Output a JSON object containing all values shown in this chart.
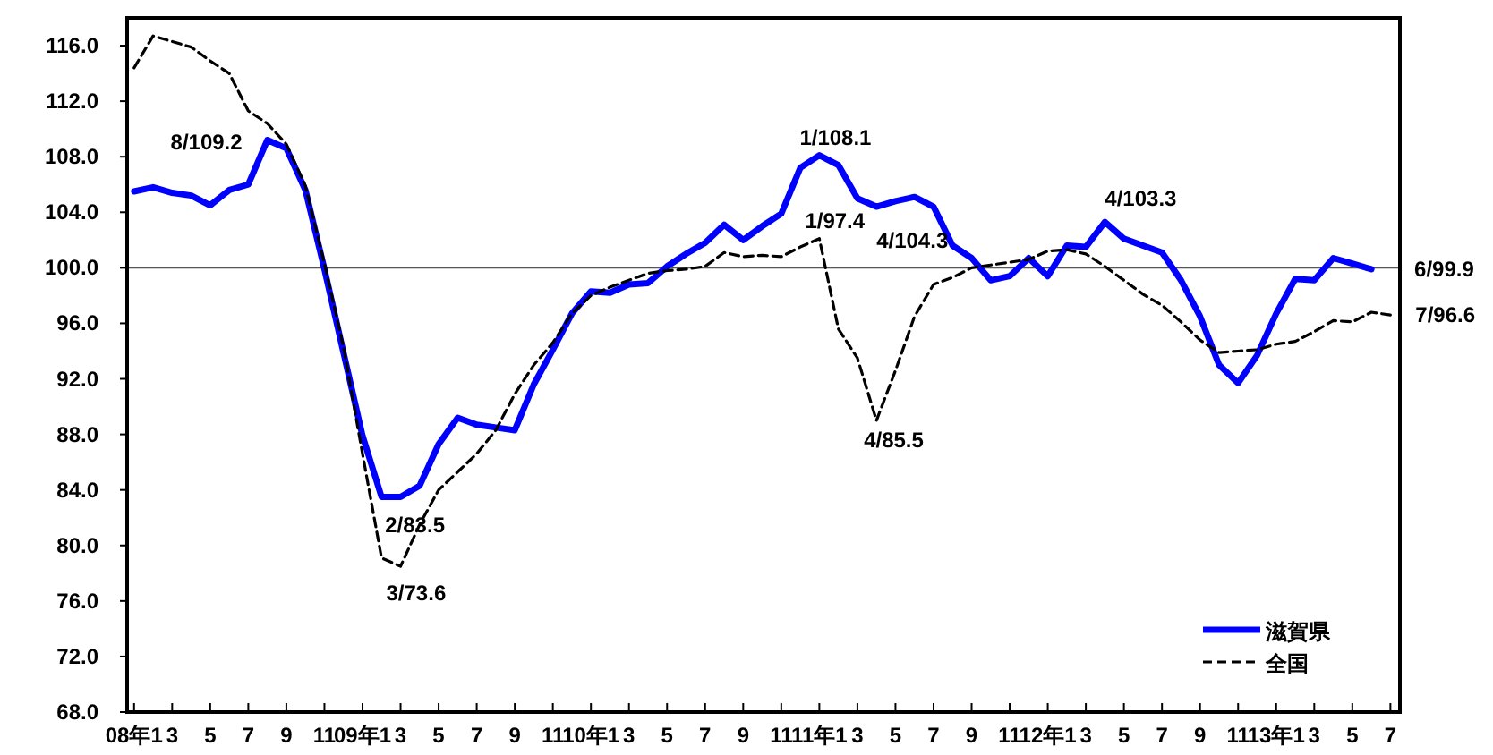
{
  "chart_data": {
    "type": "line",
    "x": [
      "2008-01",
      "2008-02",
      "2008-03",
      "2008-04",
      "2008-05",
      "2008-06",
      "2008-07",
      "2008-08",
      "2008-09",
      "2008-10",
      "2008-11",
      "2008-12",
      "2009-01",
      "2009-02",
      "2009-03",
      "2009-04",
      "2009-05",
      "2009-06",
      "2009-07",
      "2009-08",
      "2009-09",
      "2009-10",
      "2009-11",
      "2009-12",
      "2010-01",
      "2010-02",
      "2010-03",
      "2010-04",
      "2010-05",
      "2010-06",
      "2010-07",
      "2010-08",
      "2010-09",
      "2010-10",
      "2010-11",
      "2010-12",
      "2011-01",
      "2011-02",
      "2011-03",
      "2011-04",
      "2011-05",
      "2011-06",
      "2011-07",
      "2011-08",
      "2011-09",
      "2011-10",
      "2011-11",
      "2011-12",
      "2012-01",
      "2012-02",
      "2012-03",
      "2012-04",
      "2012-05",
      "2012-06",
      "2012-07",
      "2012-08",
      "2012-09",
      "2012-10",
      "2012-11",
      "2012-12",
      "2013-01",
      "2013-02",
      "2013-03",
      "2013-04",
      "2013-05",
      "2013-06",
      "2013-07"
    ],
    "series": [
      {
        "name": "滋賀県",
        "color": "#0000ff",
        "line_style": "solid",
        "values": [
          105.5,
          105.8,
          105.4,
          105.2,
          104.5,
          105.6,
          106.0,
          109.2,
          108.6,
          105.6,
          99.9,
          93.9,
          87.9,
          83.5,
          83.5,
          84.3,
          87.3,
          89.2,
          88.7,
          88.5,
          88.3,
          91.6,
          94.1,
          96.7,
          98.3,
          98.2,
          98.8,
          98.9,
          100.1,
          101.0,
          101.8,
          103.1,
          102.0,
          103.0,
          103.9,
          107.2,
          108.1,
          107.4,
          105.0,
          104.4,
          104.8,
          105.1,
          104.4,
          101.6,
          100.7,
          99.1,
          99.4,
          100.7,
          99.4,
          101.6,
          101.5,
          103.3,
          102.1,
          101.6,
          101.1,
          99.1,
          96.5,
          93.0,
          91.7,
          93.7,
          96.7,
          99.2,
          99.1,
          100.7,
          100.3,
          99.9,
          null
        ]
      },
      {
        "name": "全国",
        "color": "#000000",
        "line_style": "dashed",
        "values": [
          114.4,
          116.7,
          116.3,
          115.9,
          114.9,
          114.0,
          111.3,
          110.4,
          108.9,
          105.9,
          100.3,
          94.3,
          86.6,
          79.1,
          78.5,
          81.5,
          84.0,
          85.3,
          86.6,
          88.3,
          90.9,
          93.0,
          94.6,
          96.7,
          98.0,
          98.6,
          99.1,
          99.6,
          99.8,
          99.9,
          100.1,
          101.1,
          100.8,
          100.9,
          100.8,
          101.5,
          102.1,
          95.6,
          93.5,
          89.0,
          92.6,
          96.5,
          98.8,
          99.3,
          100.0,
          100.2,
          100.4,
          100.6,
          101.2,
          101.3,
          101.0,
          100.1,
          99.1,
          98.1,
          97.3,
          96.1,
          94.8,
          93.9,
          94.0,
          94.1,
          94.5,
          94.7,
          95.4,
          96.2,
          96.1,
          96.8,
          96.6
        ]
      }
    ],
    "xlim": [
      "2007-12-20",
      "2013-07-16"
    ],
    "xticks": [
      {
        "value": "2008-01",
        "label": "08年1"
      },
      {
        "value": "2008-03",
        "label": "3"
      },
      {
        "value": "2008-05",
        "label": "5"
      },
      {
        "value": "2008-07",
        "label": "7"
      },
      {
        "value": "2008-09",
        "label": "9"
      },
      {
        "value": "2008-11",
        "label": "11"
      },
      {
        "value": "2009-01",
        "label": "09年1"
      },
      {
        "value": "2009-03",
        "label": "3"
      },
      {
        "value": "2009-05",
        "label": "5"
      },
      {
        "value": "2009-07",
        "label": "7"
      },
      {
        "value": "2009-09",
        "label": "9"
      },
      {
        "value": "2009-11",
        "label": "11"
      },
      {
        "value": "2010-01",
        "label": "10年1"
      },
      {
        "value": "2010-03",
        "label": "3"
      },
      {
        "value": "2010-05",
        "label": "5"
      },
      {
        "value": "2010-07",
        "label": "7"
      },
      {
        "value": "2010-09",
        "label": "9"
      },
      {
        "value": "2010-11",
        "label": "11"
      },
      {
        "value": "2011-01",
        "label": "11年1"
      },
      {
        "value": "2011-03",
        "label": "3"
      },
      {
        "value": "2011-05",
        "label": "5"
      },
      {
        "value": "2011-07",
        "label": "7"
      },
      {
        "value": "2011-09",
        "label": "9"
      },
      {
        "value": "2011-11",
        "label": "11"
      },
      {
        "value": "2012-01",
        "label": "12年1"
      },
      {
        "value": "2012-03",
        "label": "3"
      },
      {
        "value": "2012-05",
        "label": "5"
      },
      {
        "value": "2012-07",
        "label": "7"
      },
      {
        "value": "2012-09",
        "label": "9"
      },
      {
        "value": "2012-11",
        "label": "11"
      },
      {
        "value": "2013-01",
        "label": "13年1"
      },
      {
        "value": "2013-03",
        "label": "3"
      },
      {
        "value": "2013-05",
        "label": "5"
      },
      {
        "value": "2013-07",
        "label": "7"
      }
    ],
    "ylim": [
      68,
      118
    ],
    "yticks": [
      {
        "value": 68,
        "label": "68.0"
      },
      {
        "value": 72,
        "label": "72.0"
      },
      {
        "value": 76,
        "label": "76.0"
      },
      {
        "value": 80,
        "label": "80.0"
      },
      {
        "value": 84,
        "label": "84.0"
      },
      {
        "value": 88,
        "label": "88.0"
      },
      {
        "value": 92,
        "label": "92.0"
      },
      {
        "value": 96,
        "label": "96.0"
      },
      {
        "value": 100,
        "label": "100.0"
      },
      {
        "value": 104,
        "label": "104.0"
      },
      {
        "value": 108,
        "label": "108.0"
      },
      {
        "value": 112,
        "label": "112.0"
      },
      {
        "value": 116,
        "label": "116.0"
      }
    ],
    "ref_lines": [
      {
        "axis": "y",
        "value": 100,
        "color": "#555555"
      }
    ],
    "grid": false,
    "legend": "bottom right",
    "marker": "none",
    "annotations": [
      {
        "text": "8/109.2",
        "x": "2008-08",
        "y": 109.2
      },
      {
        "text": "2/83.5",
        "x": "2009-02",
        "y": 83.5
      },
      {
        "text": "3/73.6",
        "x": "2009-03",
        "y": 78.5
      },
      {
        "text": "1/108.1",
        "x": "2011-01",
        "y": 108.1
      },
      {
        "text": "1/97.4",
        "x": "2011-01",
        "y": 102.1
      },
      {
        "text": "4/104.3",
        "x": "2011-04",
        "y": 104.4
      },
      {
        "text": "4/85.5",
        "x": "2011-04",
        "y": 89.0
      },
      {
        "text": "4/103.3",
        "x": "2012-04",
        "y": 103.3
      },
      {
        "text": "6/99.9",
        "x": "2013-06",
        "y": 99.9
      },
      {
        "text": "7/96.6",
        "x": "2013-07",
        "y": 96.6
      }
    ]
  }
}
